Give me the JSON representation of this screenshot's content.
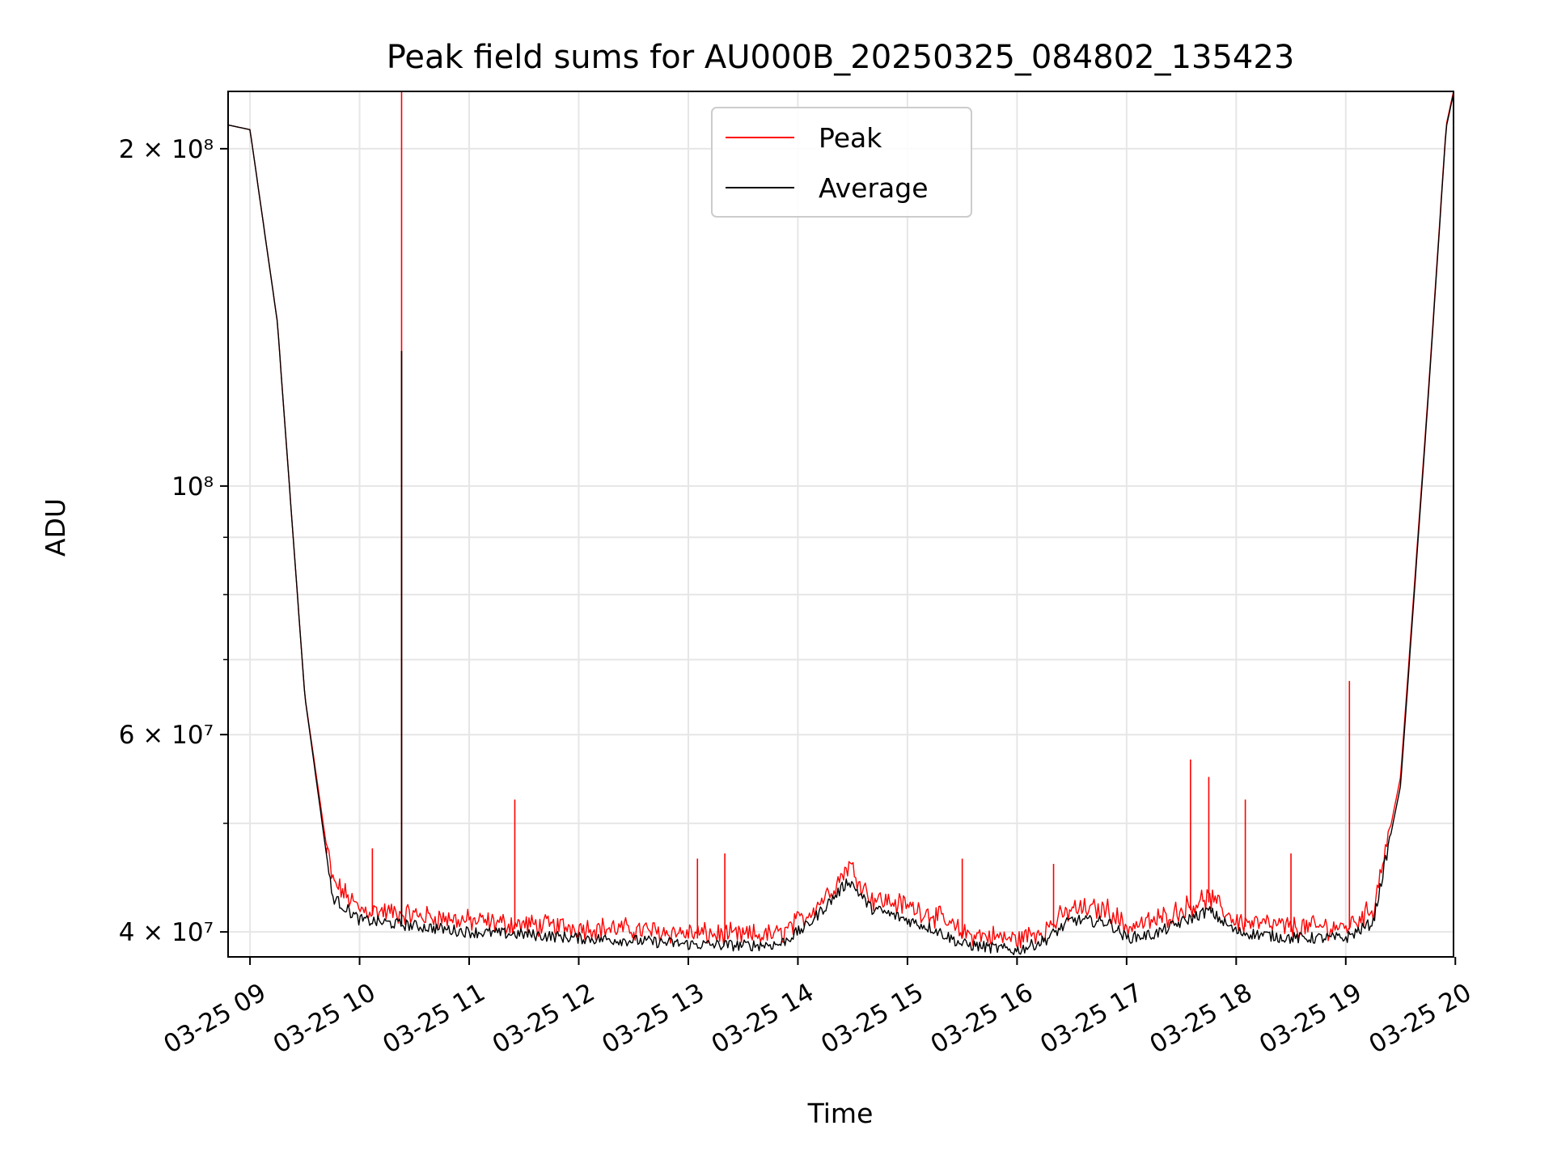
{
  "chart_data": {
    "type": "line",
    "title": "Peak field sums for AU000B_20250325_084802_135423",
    "xlabel": "Time",
    "ylabel": "ADU",
    "yscale": "log",
    "xlim": [
      "2025-03-25 08:48",
      "2025-03-25 19:59"
    ],
    "ylim": [
      38000000,
      225000000
    ],
    "x_tick_labels": [
      "03-25 09",
      "03-25 10",
      "03-25 11",
      "03-25 12",
      "03-25 13",
      "03-25 14",
      "03-25 15",
      "03-25 16",
      "03-25 17",
      "03-25 18",
      "03-25 19",
      "03-25 20"
    ],
    "y_tick_labels": [
      {
        "value": 40000000,
        "label": "4 × 10⁷"
      },
      {
        "value": 60000000,
        "label": "6 × 10⁷"
      },
      {
        "value": 100000000,
        "label": "10⁸"
      },
      {
        "value": 200000000,
        "label": "2 × 10⁸"
      }
    ],
    "grid": true,
    "legend": "upper center",
    "x": [
      "2025-03-25 08:48",
      "2025-03-25 09:00",
      "2025-03-25 09:15",
      "2025-03-25 09:30",
      "2025-03-25 09:45",
      "2025-03-25 10:00",
      "2025-03-25 10:30",
      "2025-03-25 11:00",
      "2025-03-25 11:30",
      "2025-03-25 12:00",
      "2025-03-25 12:30",
      "2025-03-25 13:00",
      "2025-03-25 13:30",
      "2025-03-25 13:50",
      "2025-03-25 14:05",
      "2025-03-25 14:20",
      "2025-03-25 14:28",
      "2025-03-25 14:40",
      "2025-03-25 15:00",
      "2025-03-25 15:15",
      "2025-03-25 15:30",
      "2025-03-25 16:00",
      "2025-03-25 16:15",
      "2025-03-25 16:30",
      "2025-03-25 16:50",
      "2025-03-25 17:00",
      "2025-03-25 17:15",
      "2025-03-25 17:30",
      "2025-03-25 17:45",
      "2025-03-25 18:00",
      "2025-03-25 18:30",
      "2025-03-25 19:00",
      "2025-03-25 19:15",
      "2025-03-25 19:30",
      "2025-03-25 19:45",
      "2025-03-25 19:55",
      "2025-03-25 19:59"
    ],
    "series": [
      {
        "name": "Peak",
        "color": "#ff0000",
        "values": [
          210000000,
          208000000,
          140000000,
          65000000,
          44000000,
          41500000,
          41000000,
          40500000,
          40200000,
          40000000,
          39800000,
          39500000,
          39300000,
          39400000,
          41000000,
          43500000,
          45500000,
          42500000,
          41800000,
          41000000,
          39500000,
          39000000,
          39800000,
          41500000,
          41500000,
          40000000,
          40500000,
          41500000,
          42500000,
          40500000,
          40000000,
          40000000,
          41500000,
          55000000,
          120000000,
          210000000,
          225000000
        ],
        "spikes": [
          {
            "x": "2025-03-25 09:42",
            "value": 47000000
          },
          {
            "x": "2025-03-25 10:07",
            "value": 47500000
          },
          {
            "x": "2025-03-25 10:23",
            "value": 225000000
          },
          {
            "x": "2025-03-25 11:25",
            "value": 52500000
          },
          {
            "x": "2025-03-25 13:05",
            "value": 46500000
          },
          {
            "x": "2025-03-25 13:20",
            "value": 47000000
          },
          {
            "x": "2025-03-25 15:30",
            "value": 46500000
          },
          {
            "x": "2025-03-25 16:20",
            "value": 46000000
          },
          {
            "x": "2025-03-25 17:35",
            "value": 57000000
          },
          {
            "x": "2025-03-25 17:45",
            "value": 55000000
          },
          {
            "x": "2025-03-25 18:05",
            "value": 52500000
          },
          {
            "x": "2025-03-25 18:30",
            "value": 47000000
          },
          {
            "x": "2025-03-25 19:02",
            "value": 67000000
          }
        ]
      },
      {
        "name": "Average",
        "color": "#000000",
        "values": [
          210000000,
          208000000,
          140000000,
          65000000,
          43000000,
          41000000,
          40500000,
          40000000,
          39800000,
          39500000,
          39300000,
          39000000,
          38900000,
          39000000,
          40500000,
          43000000,
          44500000,
          42000000,
          41000000,
          40200000,
          39000000,
          38500000,
          39300000,
          41000000,
          40800000,
          39500000,
          39800000,
          40800000,
          41800000,
          40000000,
          39500000,
          39500000,
          40800000,
          54000000,
          119000000,
          209000000,
          224000000
        ],
        "spikes": [
          {
            "x": "2025-03-25 10:23",
            "value": 132000000
          }
        ]
      }
    ]
  }
}
